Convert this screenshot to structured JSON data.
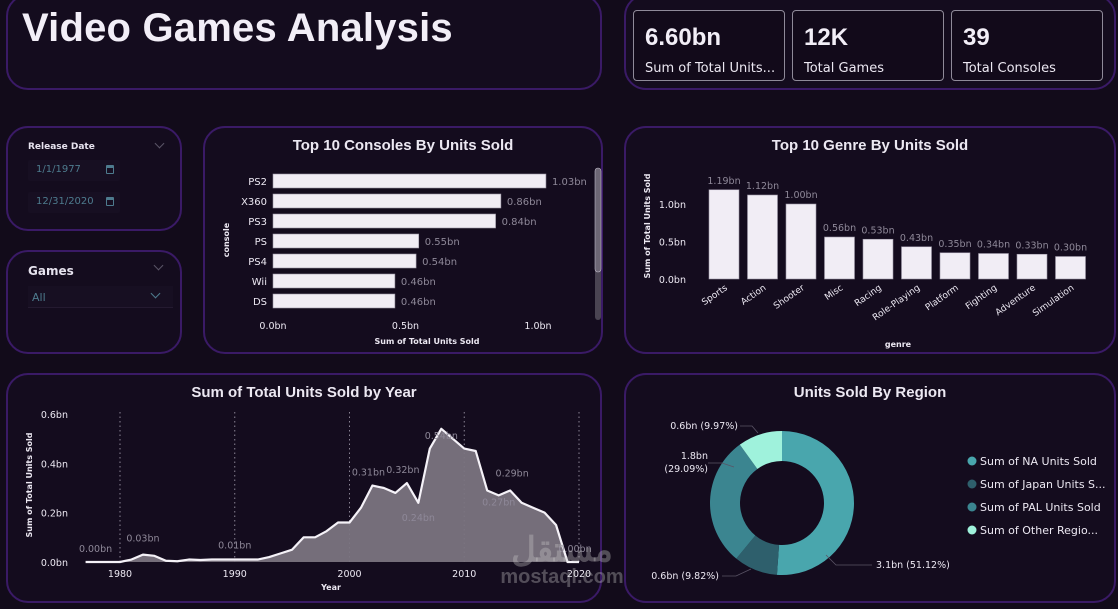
{
  "header": {
    "title": "Video Games Analysis"
  },
  "kpis": [
    {
      "value": "6.60bn",
      "label": "Sum of Total Units..."
    },
    {
      "value": "12K",
      "label": "Total Games"
    },
    {
      "value": "39",
      "label": "Total Consoles"
    }
  ],
  "filters": {
    "release_date": {
      "title": "Release Date",
      "start": "1/1/1977",
      "end": "12/31/2020"
    },
    "games": {
      "title": "Games",
      "selected": "All"
    }
  },
  "watermark": {
    "arabic": "مستقل",
    "text": "mostaql.com"
  },
  "colors": {
    "background": "#120b1a",
    "panel_border": "#3a1a66",
    "bar": "#f1edf5",
    "area_fill": "#7a7480",
    "na": "#49a6ad",
    "japan": "#2e5f6c",
    "pal": "#3b8590",
    "other": "#9ff2dc"
  },
  "chart_data": [
    {
      "id": "consoles",
      "type": "bar",
      "orientation": "horizontal",
      "title": "Top 10 Consoles By Units Sold",
      "xlabel": "Sum of Total Units Sold",
      "ylabel": "console",
      "categories": [
        "PS2",
        "X360",
        "PS3",
        "PS",
        "PS4",
        "Wii",
        "DS"
      ],
      "values": [
        1.03,
        0.86,
        0.84,
        0.55,
        0.54,
        0.46,
        0.46
      ],
      "data_labels": [
        "1.03bn",
        "0.86bn",
        "0.84bn",
        "0.55bn",
        "0.54bn",
        "0.46bn",
        "0.46bn"
      ],
      "xticks": [
        "0.0bn",
        "0.5bn",
        "1.0bn"
      ],
      "xtick_values": [
        0,
        0.5,
        1.0
      ],
      "xlim": [
        0,
        1.2
      ],
      "unit": "bn",
      "note": "scrollable; 7 of 10 visible"
    },
    {
      "id": "genre",
      "type": "bar",
      "title": "Top 10 Genre By Units Sold",
      "xlabel": "genre",
      "ylabel": "Sum of Total Units Sold",
      "categories": [
        "Sports",
        "Action",
        "Shooter",
        "Misc",
        "Racing",
        "Role-Playing",
        "Platform",
        "Fighting",
        "Adventure",
        "Simulation"
      ],
      "values": [
        1.19,
        1.12,
        1.0,
        0.56,
        0.53,
        0.43,
        0.35,
        0.34,
        0.33,
        0.3
      ],
      "data_labels": [
        "1.19bn",
        "1.12bn",
        "1.00bn",
        "0.56bn",
        "0.53bn",
        "0.43bn",
        "0.35bn",
        "0.34bn",
        "0.33bn",
        "0.30bn"
      ],
      "yticks": [
        "0.0bn",
        "0.5bn",
        "1.0bn"
      ],
      "ytick_values": [
        0,
        0.5,
        1.0
      ],
      "ylim": [
        0,
        1.3
      ],
      "unit": "bn"
    },
    {
      "id": "year",
      "type": "area",
      "title": "Sum of Total Units Sold by Year",
      "xlabel": "Year",
      "ylabel": "Sum of Total Units Sold",
      "x": [
        1977,
        1978,
        1979,
        1980,
        1981,
        1982,
        1983,
        1984,
        1985,
        1986,
        1987,
        1988,
        1989,
        1990,
        1991,
        1992,
        1993,
        1994,
        1995,
        1996,
        1997,
        1998,
        1999,
        2000,
        2001,
        2002,
        2003,
        2004,
        2005,
        2006,
        2007,
        2008,
        2009,
        2010,
        2011,
        2012,
        2013,
        2014,
        2015,
        2016,
        2017,
        2018,
        2019,
        2020
      ],
      "values": [
        0.0,
        0.0,
        0.0,
        0.0,
        0.01,
        0.03,
        0.025,
        0.005,
        0.003,
        0.01,
        0.008,
        0.01,
        0.01,
        0.01,
        0.01,
        0.01,
        0.02,
        0.035,
        0.05,
        0.1,
        0.1,
        0.125,
        0.16,
        0.16,
        0.22,
        0.31,
        0.3,
        0.28,
        0.32,
        0.24,
        0.46,
        0.54,
        0.5,
        0.46,
        0.45,
        0.29,
        0.27,
        0.29,
        0.24,
        0.22,
        0.2,
        0.15,
        0.0,
        0.0
      ],
      "annotations": [
        {
          "x": 1977,
          "label": "0.00bn"
        },
        {
          "x": 1982,
          "label": "0.03bn"
        },
        {
          "x": 1990,
          "label": "0.01bn"
        },
        {
          "x": 2002,
          "label": "0.31bn"
        },
        {
          "x": 2005,
          "label": "0.32bn"
        },
        {
          "x": 2006,
          "label": "0.24bn"
        },
        {
          "x": 2008,
          "label": "0.54bn"
        },
        {
          "x": 2013,
          "label": "0.27bn"
        },
        {
          "x": 2014,
          "label": "0.29bn"
        },
        {
          "x": 2020,
          "label": "0.00bn"
        }
      ],
      "xticks": [
        "1980",
        "1990",
        "2000",
        "2010",
        "2020"
      ],
      "xtick_values": [
        1980,
        1990,
        2000,
        2010,
        2020
      ],
      "yticks": [
        "0.0bn",
        "0.2bn",
        "0.4bn",
        "0.6bn"
      ],
      "ytick_values": [
        0,
        0.2,
        0.4,
        0.6
      ],
      "xlim": [
        1977,
        2020
      ],
      "ylim": [
        0,
        0.6
      ],
      "grid": "vertical dotted",
      "unit": "bn"
    },
    {
      "id": "region",
      "type": "pie",
      "variant": "donut",
      "title": "Units Sold By Region",
      "legend_position": "right",
      "slices": [
        {
          "name": "Sum of NA Units Sold",
          "legend": "Sum of NA Units Sold",
          "value": 3.1,
          "percent": 51.12,
          "label": "3.1bn (51.12%)",
          "color": "#49a6ad"
        },
        {
          "name": "Sum of Japan Units Sold",
          "legend": "Sum of Japan Units S...",
          "value": 0.6,
          "percent": 9.82,
          "label": "0.6bn (9.82%)",
          "color": "#2e5f6c"
        },
        {
          "name": "Sum of PAL Units Sold",
          "legend": "Sum of PAL Units Sold",
          "value": 1.8,
          "percent": 29.09,
          "label_line1": "1.8bn",
          "label_line2": "(29.09%)",
          "color": "#3b8590"
        },
        {
          "name": "Sum of Other Region Units Sold",
          "legend": "Sum of Other Regio...",
          "value": 0.6,
          "percent": 9.97,
          "label": "0.6bn (9.97%)",
          "color": "#9ff2dc"
        }
      ]
    }
  ]
}
